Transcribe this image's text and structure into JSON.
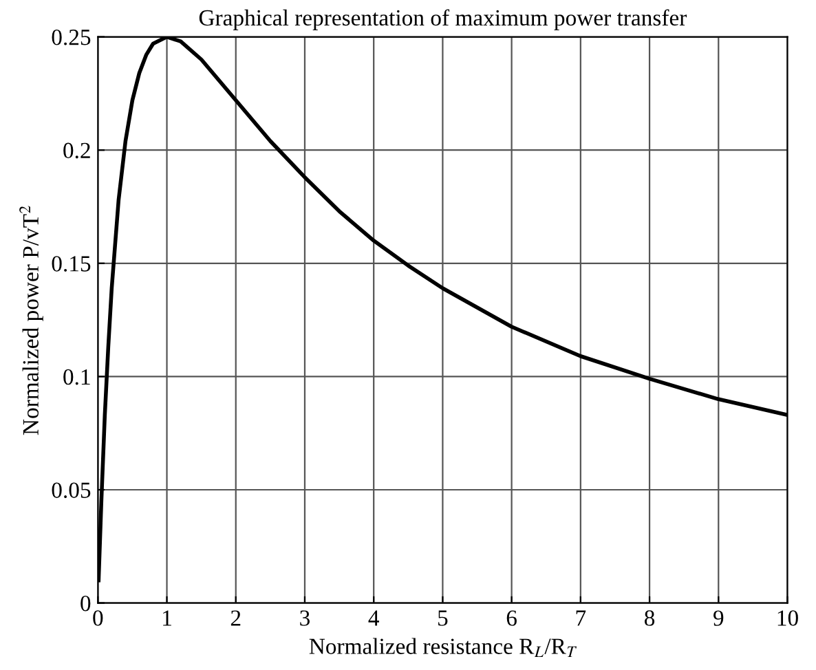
{
  "chart_data": {
    "type": "line",
    "title": "Graphical representation of maximum power transfer",
    "xlabel": "Normalized resistance R$_{L}$/R$_{T}$",
    "ylabel": "Normalized power P/vT$^{2}$",
    "x": [
      0.01,
      0.05,
      0.1,
      0.15,
      0.2,
      0.3,
      0.4,
      0.5,
      0.6,
      0.7,
      0.8,
      1,
      1.2,
      1.5,
      2,
      2.5,
      3,
      3.5,
      4,
      4.5,
      5,
      6,
      7,
      8,
      9,
      10
    ],
    "series": [
      {
        "color": "#000000",
        "values": [
          0.01,
          0.045,
          0.083,
          0.113,
          0.139,
          0.178,
          0.204,
          0.222,
          0.234,
          0.242,
          0.247,
          0.25,
          0.248,
          0.24,
          0.222,
          0.204,
          0.188,
          0.173,
          0.16,
          0.149,
          0.139,
          0.122,
          0.109,
          0.099,
          0.09,
          0.083
        ]
      }
    ],
    "xlim": [
      0,
      10
    ],
    "ylim": [
      0,
      0.25
    ],
    "xticks": [
      0,
      1,
      2,
      3,
      4,
      5,
      6,
      7,
      8,
      9,
      10
    ],
    "yticks": [
      0,
      0.05,
      0.1,
      0.15,
      0.2,
      0.25
    ],
    "grid": true,
    "legend": false,
    "marker": "none",
    "line_style": "solid"
  }
}
